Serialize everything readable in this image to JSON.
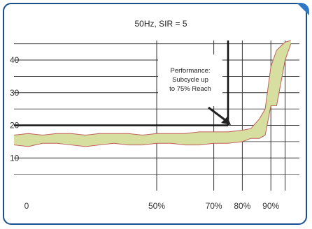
{
  "colors": {
    "frame": "#1a4f8f",
    "accent": "#2d79c7",
    "band_fill": "#d6dfa0",
    "band_edge": "#c0605a",
    "grid": "#333333"
  },
  "chart_data": {
    "type": "area",
    "title": "50Hz,  SIR = 5",
    "xlabel": "",
    "ylabel": "",
    "xlim": [
      0,
      100
    ],
    "ylim": [
      0,
      46
    ],
    "y_ticks": [
      10,
      20,
      30,
      40
    ],
    "x_tick_labels": [
      {
        "value": 0,
        "label": "0"
      },
      {
        "value": 50,
        "label": "50%"
      },
      {
        "value": 70,
        "label": "70%"
      },
      {
        "value": 80,
        "label": "80%"
      },
      {
        "value": 90,
        "label": "90%"
      }
    ],
    "series": [
      {
        "upper": [
          [
            0,
            17
          ],
          [
            5,
            17.5
          ],
          [
            10,
            17
          ],
          [
            15,
            17.5
          ],
          [
            20,
            17.5
          ],
          [
            25,
            17
          ],
          [
            30,
            17.5
          ],
          [
            35,
            17.5
          ],
          [
            40,
            17.5
          ],
          [
            45,
            17
          ],
          [
            50,
            17.5
          ],
          [
            55,
            17.5
          ],
          [
            60,
            17.5
          ],
          [
            65,
            18
          ],
          [
            70,
            18
          ],
          [
            75,
            18
          ],
          [
            80,
            18.5
          ],
          [
            83,
            19
          ],
          [
            86,
            22
          ],
          [
            88,
            25
          ],
          [
            90,
            38
          ],
          [
            92,
            43
          ],
          [
            95,
            45.5
          ],
          [
            97,
            46
          ]
        ],
        "lower": [
          [
            0,
            14
          ],
          [
            5,
            13.5
          ],
          [
            10,
            14.5
          ],
          [
            15,
            14.5
          ],
          [
            20,
            14
          ],
          [
            25,
            13.5
          ],
          [
            30,
            14
          ],
          [
            35,
            14.5
          ],
          [
            40,
            14
          ],
          [
            45,
            14
          ],
          [
            50,
            14.5
          ],
          [
            55,
            14.5
          ],
          [
            60,
            14
          ],
          [
            65,
            14
          ],
          [
            70,
            14.5
          ],
          [
            75,
            14.5
          ],
          [
            80,
            15
          ],
          [
            83,
            16
          ],
          [
            86,
            16
          ],
          [
            88,
            17
          ],
          [
            90,
            26
          ],
          [
            92,
            26
          ],
          [
            95,
            40
          ],
          [
            97,
            45
          ]
        ]
      }
    ],
    "annotation": {
      "lines": [
        "Performance:",
        "Subcycle up",
        "to 75% Reach"
      ]
    },
    "reference": {
      "x": 75,
      "y": 20
    }
  }
}
